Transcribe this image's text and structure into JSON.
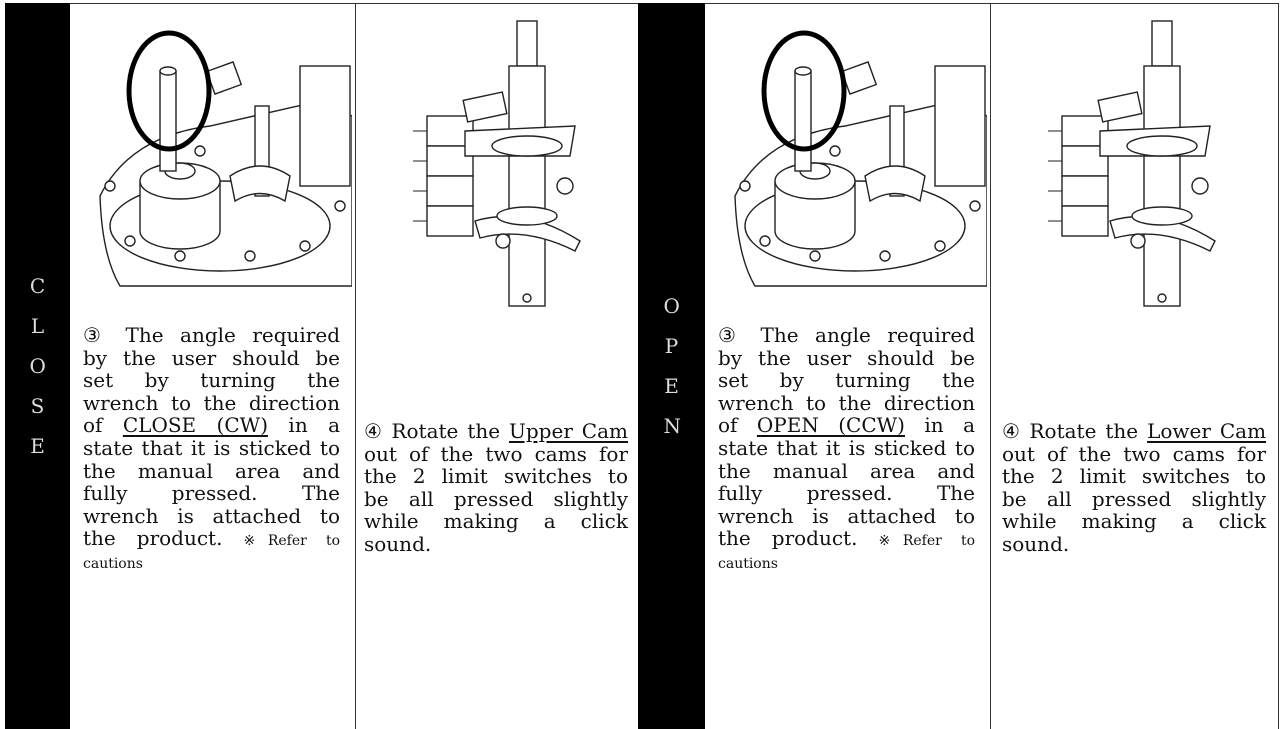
{
  "sections": [
    {
      "label": "CLOSE",
      "steps": [
        {
          "number": "③",
          "text_before": "The angle required by the user should be set by turning the wrench to the direction of",
          "underlined": "CLOSE (CW)",
          "text_after": "in a state that it is sticked to the manual area and fully pressed. The wrench is attached to the product.",
          "note": "※Refer to cautions"
        },
        {
          "number": "④",
          "text_before": "Rotate the",
          "underlined": "Upper Cam",
          "text_after": "out of the two cams for the 2 limit switches to be all pressed slightly while making a click sound."
        }
      ]
    },
    {
      "label": "OPEN",
      "steps": [
        {
          "number": "③",
          "text_before": "The angle required by the user should be set by turning the wrench to the direction of",
          "underlined": "OPEN (CCW)",
          "text_after": "in a state that it is sticked to the manual area and fully pressed. The wrench is attached to the product.",
          "note": "※Refer to cautions"
        },
        {
          "number": "④",
          "text_before": "Rotate the",
          "underlined": "Lower Cam",
          "text_after": "out of the two cams for the 2 limit switches to be all pressed slightly while making a click sound."
        }
      ]
    }
  ]
}
